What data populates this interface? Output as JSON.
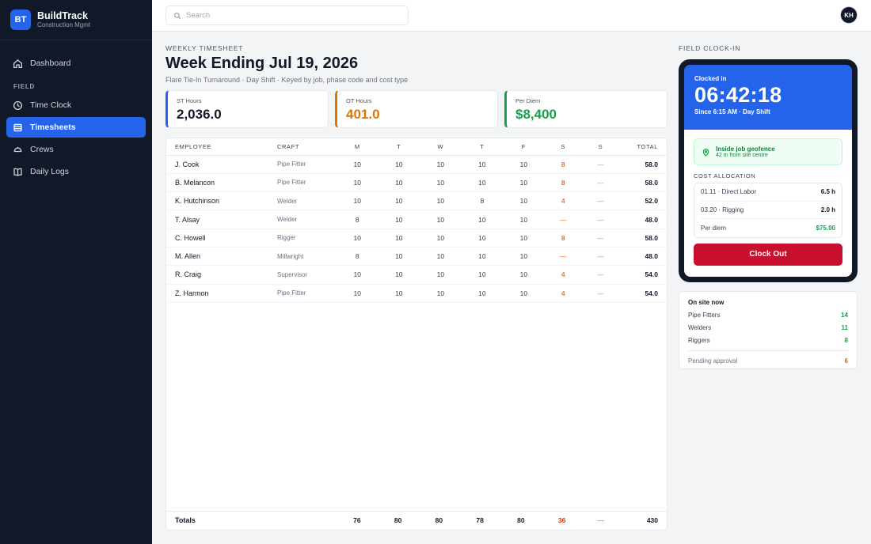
{
  "brand": {
    "badge": "BT",
    "name": "BuildTrack",
    "sub": "Construction Mgmt"
  },
  "sidebar": {
    "items": [
      {
        "label": "Dashboard"
      },
      {
        "label": "Time Clock"
      },
      {
        "label": "Timesheets"
      },
      {
        "label": "Crews"
      },
      {
        "label": "Daily Logs"
      }
    ],
    "section_field": "FIELD"
  },
  "search": {
    "placeholder": "Search"
  },
  "user": {
    "initials": "KH"
  },
  "header": {
    "eyebrow": "WEEKLY TIMESHEET",
    "title": "Week Ending Jul 19, 2026",
    "subtitle": "Flare Tie-In Turnaround · Day Shift · Keyed by job, phase code and cost type"
  },
  "stats": [
    {
      "label": "ST Hours",
      "value": "2,036.0"
    },
    {
      "label": "OT Hours",
      "value": "401.0"
    },
    {
      "label": "Per Diem",
      "value": "$8,400"
    }
  ],
  "timesheet": {
    "columns": [
      "EMPLOYEE",
      "CRAFT",
      "M",
      "T",
      "W",
      "T",
      "F",
      "S",
      "S",
      "TOTAL"
    ],
    "rows": [
      {
        "employee": "J. Cook",
        "craft": "Pipe Fitter",
        "m": "10",
        "t": "10",
        "w": "10",
        "th": "10",
        "f": "10",
        "sa": "8",
        "su": "—",
        "total": "58.0"
      },
      {
        "employee": "B. Melancon",
        "craft": "Pipe Fitter",
        "m": "10",
        "t": "10",
        "w": "10",
        "th": "10",
        "f": "10",
        "sa": "8",
        "su": "—",
        "total": "58.0"
      },
      {
        "employee": "K. Hutchinson",
        "craft": "Welder",
        "m": "10",
        "t": "10",
        "w": "10",
        "th": "8",
        "f": "10",
        "sa": "4",
        "su": "—",
        "total": "52.0"
      },
      {
        "employee": "T. Alsay",
        "craft": "Welder",
        "m": "8",
        "t": "10",
        "w": "10",
        "th": "10",
        "f": "10",
        "sa": "—",
        "su": "—",
        "total": "48.0"
      },
      {
        "employee": "C. Howell",
        "craft": "Rigger",
        "m": "10",
        "t": "10",
        "w": "10",
        "th": "10",
        "f": "10",
        "sa": "8",
        "su": "—",
        "total": "58.0"
      },
      {
        "employee": "M. Allen",
        "craft": "Millwright",
        "m": "8",
        "t": "10",
        "w": "10",
        "th": "10",
        "f": "10",
        "sa": "—",
        "su": "—",
        "total": "48.0"
      },
      {
        "employee": "R. Craig",
        "craft": "Supervisor",
        "m": "10",
        "t": "10",
        "w": "10",
        "th": "10",
        "f": "10",
        "sa": "4",
        "su": "—",
        "total": "54.0"
      },
      {
        "employee": "Z. Harmon",
        "craft": "Pipe Fitter",
        "m": "10",
        "t": "10",
        "w": "10",
        "th": "10",
        "f": "10",
        "sa": "4",
        "su": "—",
        "total": "54.0"
      }
    ],
    "totals": {
      "label": "Totals",
      "m": "76",
      "t": "80",
      "w": "80",
      "th": "78",
      "f": "80",
      "sa": "36",
      "su": "—",
      "total": "430"
    }
  },
  "field_clock": {
    "section_label": "FIELD CLOCK-IN",
    "status": "Clocked in",
    "elapsed": "06:42:18",
    "since": "Since 6:15 AM · Day Shift",
    "geofence_title": "Inside job geofence",
    "geofence_sub": "42 m from site centre",
    "allocation_title": "COST ALLOCATION",
    "allocation": [
      {
        "label": "01.11 · Direct Labor",
        "value": "6.5 h"
      },
      {
        "label": "03.20 · Rigging",
        "value": "2.0 h"
      },
      {
        "label": "Per diem",
        "value": "$75.00"
      }
    ],
    "clock_out_label": "Clock Out"
  },
  "onsite": {
    "title": "On site now",
    "rows": [
      {
        "label": "Pipe Fitters",
        "count": "14"
      },
      {
        "label": "Welders",
        "count": "11"
      },
      {
        "label": "Riggers",
        "count": "8"
      }
    ],
    "pending_label": "Pending approval",
    "pending_count": "6"
  },
  "colors": {
    "accent": "#2563eb",
    "ot": "#d97706",
    "per_diem": "#16a34a",
    "danger": "#c8102e",
    "sidebar": "#111827"
  }
}
